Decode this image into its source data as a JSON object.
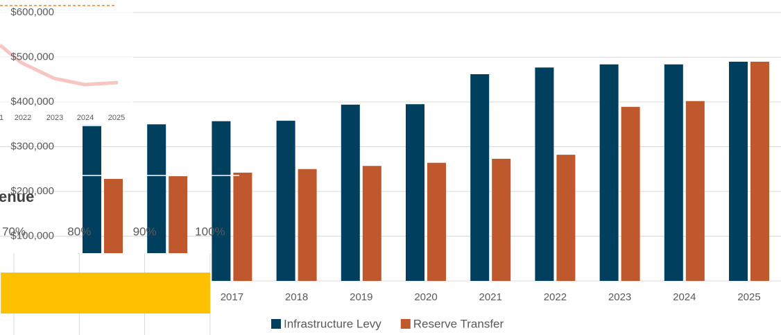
{
  "chart_data": [
    {
      "type": "bar",
      "categories": [
        null,
        null,
        "2017",
        "2018",
        "2019",
        "2020",
        "2021",
        "2022",
        "2023",
        "2024",
        "2025"
      ],
      "series": [
        {
          "name": "Infrastructure Levy",
          "color": "#00405e",
          "values": [
            349000,
            350000,
            357000,
            358000,
            394000,
            395000,
            462000,
            477000,
            484000,
            484000,
            490000
          ]
        },
        {
          "name": "Reserve Transfer",
          "color": "#bf582d",
          "values": [
            228000,
            234000,
            242000,
            250000,
            257000,
            264000,
            273000,
            282000,
            389000,
            402000,
            490000
          ]
        }
      ],
      "ylim": [
        0,
        600000
      ],
      "yticks": [
        {
          "value": 100000,
          "label": "$100,000"
        },
        {
          "value": 200000,
          "label": "$200,000"
        },
        {
          "value": 300000,
          "label": "$300,000"
        },
        {
          "value": 400000,
          "label": "$400,000"
        },
        {
          "value": 500000,
          "label": "$500,000"
        },
        {
          "value": 600000,
          "label": "$600,000"
        }
      ],
      "grid": true,
      "legend": "bottom"
    },
    {
      "type": "line",
      "categories": [
        "1",
        "2022",
        "2023",
        "2024",
        "2025"
      ]
    },
    {
      "type": "hbar",
      "title": "enue",
      "xlim": [
        68,
        100
      ],
      "xticks": [
        {
          "value": 70,
          "label": "70%"
        },
        {
          "value": 80,
          "label": "80%"
        },
        {
          "value": 90,
          "label": "90%"
        },
        {
          "value": 100,
          "label": "100%"
        }
      ],
      "values": [
        100
      ],
      "color": "#ffc000"
    }
  ]
}
